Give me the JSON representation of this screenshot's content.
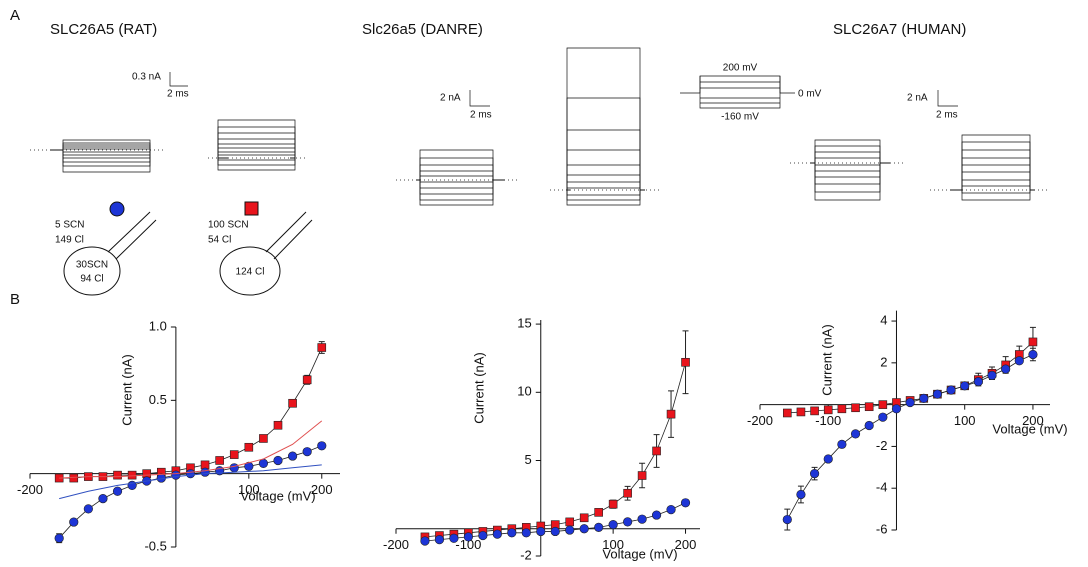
{
  "panel_labels": [
    "A",
    "B"
  ],
  "panel_a": {
    "titles": [
      "SLC26A5 (RAT)",
      "Slc26a5 (DANRE)",
      "SLC26A7 (HUMAN)"
    ],
    "scale_bars": [
      {
        "current": "0.3 nA",
        "time": "2 ms"
      },
      {
        "current": "2 nA",
        "time": "2 ms"
      },
      {
        "current": "2 nA",
        "time": "2 ms"
      }
    ],
    "protocol": {
      "top": "200 mV",
      "holding": "0 mV",
      "bottom": "-160 mV"
    },
    "cells": [
      {
        "pipette": [
          "5 SCN",
          "149 Cl"
        ],
        "bath": [
          "30SCN",
          "94 Cl"
        ]
      },
      {
        "pipette": [
          "100 SCN",
          "54 Cl"
        ],
        "bath": [
          "124 Cl"
        ]
      }
    ]
  },
  "chart_data": [
    {
      "type": "line",
      "x_label": "Voltage (mV)",
      "y_label": "Current (nA)",
      "x": [
        -160,
        -140,
        -120,
        -100,
        -80,
        -60,
        -40,
        -20,
        0,
        20,
        40,
        60,
        80,
        100,
        120,
        140,
        160,
        180,
        200
      ],
      "xlim": [
        -200,
        225
      ],
      "ylim": [
        -0.5,
        1.0
      ],
      "xticks": [
        -200,
        100,
        200
      ],
      "yticks": [
        -0.5,
        0.5,
        {
          "value": 1,
          "label": "1.0"
        }
      ],
      "series": [
        {
          "color": "#e8141c",
          "marker": "square",
          "values": [
            -0.03,
            -0.03,
            -0.02,
            -0.02,
            -0.01,
            -0.01,
            0,
            0.01,
            0.02,
            0.04,
            0.06,
            0.09,
            0.13,
            0.18,
            0.24,
            0.33,
            0.48,
            0.64,
            0.86
          ],
          "errors": [
            null,
            null,
            null,
            null,
            null,
            null,
            null,
            null,
            null,
            null,
            null,
            null,
            null,
            null,
            null,
            null,
            0.02,
            0.03,
            0.04
          ]
        },
        {
          "color": "#1d35d6",
          "marker": "circle",
          "values": [
            -0.44,
            -0.33,
            -0.24,
            -0.17,
            -0.12,
            -0.08,
            -0.05,
            -0.03,
            -0.01,
            0,
            0.01,
            0.02,
            0.04,
            0.05,
            0.07,
            0.09,
            0.12,
            0.15,
            0.19
          ],
          "errors": [
            0.03,
            0.02,
            null,
            null,
            null,
            null,
            null,
            null,
            null,
            null,
            null,
            null,
            null,
            null,
            null,
            null,
            null,
            null,
            null
          ]
        },
        {
          "color": "#e05050",
          "marker": "none",
          "x": [
            -160,
            -120,
            -80,
            -40,
            0,
            40,
            80,
            120,
            160,
            200
          ],
          "values": [
            -0.03,
            -0.02,
            -0.02,
            -0.01,
            0,
            0.02,
            0.05,
            0.1,
            0.2,
            0.36
          ]
        },
        {
          "color": "#3050c0",
          "marker": "none",
          "x": [
            -160,
            -120,
            -80,
            -40,
            0,
            40,
            80,
            120,
            160,
            200
          ],
          "values": [
            -0.17,
            -0.12,
            -0.08,
            -0.05,
            -0.02,
            0,
            0.01,
            0.02,
            0.04,
            0.06
          ]
        }
      ]
    },
    {
      "type": "line",
      "x_label": "Voltage (mV)",
      "y_label": "Current (nA)",
      "x": [
        -160,
        -140,
        -120,
        -100,
        -80,
        -60,
        -40,
        -20,
        0,
        20,
        40,
        60,
        80,
        100,
        120,
        140,
        160,
        180,
        200
      ],
      "xlim": [
        -200,
        220
      ],
      "ylim": [
        -2,
        15.3
      ],
      "xticks": [
        -200,
        -100,
        100,
        200
      ],
      "yticks": [
        -2,
        5,
        10,
        15
      ],
      "series": [
        {
          "color": "#e8141c",
          "marker": "square",
          "values": [
            -0.6,
            -0.5,
            -0.4,
            -0.3,
            -0.2,
            -0.1,
            0,
            0.1,
            0.2,
            0.3,
            0.5,
            0.8,
            1.2,
            1.8,
            2.6,
            3.9,
            5.7,
            8.4,
            12.2
          ],
          "errors": [
            null,
            null,
            null,
            null,
            null,
            null,
            null,
            null,
            null,
            null,
            null,
            null,
            null,
            0.3,
            0.5,
            0.9,
            1.2,
            1.7,
            2.3
          ]
        },
        {
          "color": "#1d35d6",
          "marker": "circle",
          "values": [
            -0.9,
            -0.8,
            -0.7,
            -0.6,
            -0.5,
            -0.4,
            -0.3,
            -0.3,
            -0.2,
            -0.2,
            -0.1,
            0,
            0.1,
            0.3,
            0.5,
            0.7,
            1,
            1.4,
            1.9
          ]
        }
      ]
    },
    {
      "type": "line",
      "x_label": "Voltage (mV)",
      "y_label": "Current (nA)",
      "x": [
        -160,
        -140,
        -120,
        -100,
        -80,
        -60,
        -40,
        -20,
        0,
        20,
        40,
        60,
        80,
        100,
        120,
        140,
        160,
        180,
        200
      ],
      "xlim": [
        -200,
        225
      ],
      "ylim": [
        -6,
        4.5
      ],
      "xticks": [
        -200,
        -100,
        100,
        200
      ],
      "yticks": [
        -6,
        -4,
        -2,
        2,
        4
      ],
      "series": [
        {
          "color": "#e8141c",
          "marker": "square",
          "values": [
            -0.4,
            -0.35,
            -0.3,
            -0.25,
            -0.2,
            -0.15,
            -0.1,
            0,
            0.1,
            0.2,
            0.3,
            0.5,
            0.7,
            0.9,
            1.2,
            1.5,
            1.9,
            2.4,
            3.0
          ],
          "errors": [
            null,
            null,
            null,
            null,
            null,
            null,
            null,
            null,
            null,
            null,
            null,
            null,
            null,
            null,
            0.3,
            0.3,
            0.4,
            0.4,
            0.7
          ]
        },
        {
          "color": "#1d35d6",
          "marker": "circle",
          "values": [
            -5.5,
            -4.3,
            -3.3,
            -2.6,
            -1.9,
            -1.4,
            -1.0,
            -0.6,
            -0.2,
            0.1,
            0.3,
            0.5,
            0.7,
            0.9,
            1.1,
            1.4,
            1.7,
            2.1,
            2.4
          ],
          "errors": [
            0.5,
            0.4,
            0.3,
            null,
            null,
            null,
            null,
            null,
            null,
            null,
            null,
            null,
            null,
            null,
            null,
            null,
            null,
            null,
            0.3
          ]
        }
      ]
    }
  ]
}
